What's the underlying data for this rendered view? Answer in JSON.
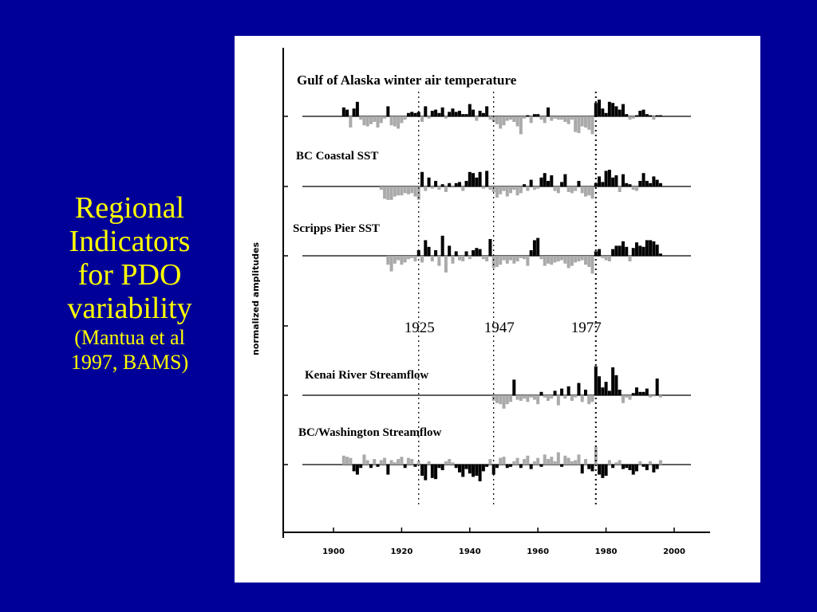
{
  "slide": {
    "title_line_1": "Regional",
    "title_line_2": "Indicators",
    "title_line_3": "for PDO",
    "title_line_4": "variability",
    "citation_line_1": "(Mantua et al",
    "citation_line_2": "1997, BAMS)",
    "background_color": "#000099",
    "title_color": "#ffff00"
  },
  "chart_data": {
    "type": "bar",
    "ylabel": "normalized amplitudes",
    "xlabel": "",
    "xlim": [
      1885,
      2010
    ],
    "x_ticks": [
      1900,
      1920,
      1940,
      1960,
      1980,
      2000
    ],
    "regime_shift_years": [
      {
        "year": 1925,
        "label": "1925"
      },
      {
        "year": 1947,
        "label": "1947"
      },
      {
        "year": 1977,
        "label": "1977"
      }
    ],
    "colors": {
      "positive_phase": "#000000",
      "negative_phase": "#aaaaaa"
    },
    "series": [
      {
        "name": "Gulf of Alaska winter air temperature",
        "x": [
          1903,
          1904,
          1905,
          1906,
          1907,
          1908,
          1909,
          1910,
          1911,
          1912,
          1913,
          1914,
          1915,
          1916,
          1917,
          1918,
          1919,
          1920,
          1921,
          1922,
          1923,
          1924,
          1925,
          1926,
          1927,
          1928,
          1929,
          1930,
          1931,
          1932,
          1933,
          1934,
          1935,
          1936,
          1937,
          1938,
          1939,
          1940,
          1941,
          1942,
          1943,
          1944,
          1945,
          1946,
          1947,
          1948,
          1949,
          1950,
          1951,
          1952,
          1953,
          1954,
          1955,
          1956,
          1957,
          1958,
          1959,
          1960,
          1961,
          1962,
          1963,
          1964,
          1965,
          1966,
          1967,
          1968,
          1969,
          1970,
          1971,
          1972,
          1973,
          1974,
          1975,
          1976,
          1977,
          1978,
          1979,
          1980,
          1981,
          1982,
          1983,
          1984,
          1985,
          1986,
          1987,
          1988,
          1989,
          1990,
          1991,
          1992,
          1993,
          1994,
          1995,
          1996
        ],
        "values": [
          0.8,
          0.6,
          -1.0,
          0.7,
          1.3,
          -0.3,
          -0.8,
          -0.9,
          -0.7,
          -0.5,
          -1.0,
          -0.6,
          -0.2,
          0.9,
          -0.8,
          -0.9,
          -1.1,
          -0.6,
          -0.3,
          0.3,
          0.4,
          0.3,
          0.4,
          -0.5,
          0.9,
          -0.2,
          0.5,
          0.6,
          0.3,
          0.8,
          -0.2,
          0.4,
          0.7,
          0.4,
          0.5,
          0.2,
          0.2,
          1.1,
          0.6,
          -0.4,
          0.5,
          0.3,
          0.9,
          -0.3,
          -0.5,
          -0.7,
          -1.1,
          -0.8,
          -0.4,
          -0.3,
          -0.5,
          -0.9,
          -1.6,
          -0.2,
          0.1,
          -0.6,
          0.2,
          0.2,
          -0.3,
          -0.6,
          0.8,
          -0.4,
          -0.2,
          -0.3,
          -0.3,
          -0.5,
          -0.7,
          -0.3,
          -1.4,
          -1.5,
          -0.9,
          -1.0,
          -1.2,
          -1.6,
          1.2,
          1.5,
          0.7,
          0.3,
          1.3,
          1.2,
          0.9,
          0.6,
          1.1,
          0.2,
          -0.3,
          -0.2,
          0.1,
          0.5,
          0.6,
          0.2,
          0.1,
          -0.3,
          0.1,
          0.1
        ],
        "approximate": true
      },
      {
        "name": "BC Coastal SST",
        "x": [
          1914,
          1915,
          1916,
          1917,
          1918,
          1919,
          1920,
          1921,
          1922,
          1923,
          1924,
          1925,
          1926,
          1927,
          1928,
          1929,
          1930,
          1931,
          1932,
          1933,
          1934,
          1935,
          1936,
          1937,
          1938,
          1939,
          1940,
          1941,
          1942,
          1943,
          1944,
          1945,
          1946,
          1947,
          1948,
          1949,
          1950,
          1951,
          1952,
          1953,
          1954,
          1955,
          1956,
          1957,
          1958,
          1959,
          1960,
          1961,
          1962,
          1963,
          1964,
          1965,
          1966,
          1967,
          1968,
          1969,
          1970,
          1971,
          1972,
          1973,
          1974,
          1975,
          1976,
          1977,
          1978,
          1979,
          1980,
          1981,
          1982,
          1983,
          1984,
          1985,
          1986,
          1987,
          1988,
          1989,
          1990,
          1991,
          1992,
          1993,
          1994,
          1995,
          1996
        ],
        "values": [
          -0.3,
          -1.1,
          -1.2,
          -1.2,
          -0.9,
          -0.8,
          -0.8,
          -0.6,
          -0.7,
          -0.6,
          -0.9,
          -1.2,
          1.3,
          -0.4,
          0.8,
          -0.2,
          0.5,
          -0.3,
          0.2,
          -0.5,
          0.3,
          -0.1,
          0.3,
          0.4,
          -0.4,
          0.5,
          1.3,
          1.2,
          0.8,
          1.3,
          -0.2,
          1.4,
          -0.3,
          -0.5,
          -1.0,
          -0.7,
          -0.4,
          -0.9,
          -0.6,
          -0.3,
          -0.8,
          -0.6,
          0.2,
          -0.4,
          0.6,
          -0.3,
          -0.2,
          0.8,
          1.2,
          0.5,
          1.0,
          -0.4,
          -0.6,
          0.4,
          1.1,
          -0.5,
          -0.6,
          -0.4,
          0.5,
          -0.6,
          -0.9,
          -0.8,
          -1.1,
          0.3,
          0.9,
          0.4,
          1.4,
          1.5,
          0.8,
          1.0,
          -0.5,
          1.1,
          0.3,
          0.2,
          -0.3,
          -0.4,
          0.5,
          1.2,
          0.5,
          0.3,
          0.9,
          0.6,
          0.3
        ],
        "approximate": true
      },
      {
        "name": "Scripps Pier SST",
        "x": [
          1916,
          1917,
          1918,
          1919,
          1920,
          1921,
          1922,
          1923,
          1924,
          1925,
          1926,
          1927,
          1928,
          1929,
          1930,
          1931,
          1932,
          1933,
          1934,
          1935,
          1936,
          1937,
          1938,
          1939,
          1940,
          1941,
          1942,
          1943,
          1944,
          1945,
          1946,
          1947,
          1948,
          1949,
          1950,
          1951,
          1952,
          1953,
          1954,
          1955,
          1956,
          1957,
          1958,
          1959,
          1960,
          1961,
          1962,
          1963,
          1964,
          1965,
          1966,
          1967,
          1968,
          1969,
          1970,
          1971,
          1972,
          1973,
          1974,
          1975,
          1976,
          1977,
          1978,
          1979,
          1980,
          1981,
          1982,
          1983,
          1984,
          1985,
          1986,
          1987,
          1988,
          1989,
          1990,
          1991,
          1992,
          1993,
          1994,
          1995,
          1996
        ],
        "values": [
          -0.8,
          -1.4,
          -0.7,
          -0.4,
          -0.8,
          -0.6,
          -0.3,
          -0.2,
          -0.5,
          0.5,
          -0.6,
          1.4,
          0.8,
          -0.5,
          0.5,
          -0.9,
          1.8,
          -1.5,
          0.9,
          -0.7,
          0.4,
          -0.4,
          -0.5,
          0.4,
          -0.3,
          0.5,
          0.7,
          0.6,
          -0.3,
          -0.5,
          1.5,
          -1.1,
          -1.0,
          -0.8,
          -0.4,
          -0.7,
          -0.4,
          -0.7,
          -0.5,
          -0.2,
          -0.3,
          -0.9,
          0.5,
          1.4,
          1.6,
          -0.3,
          -0.9,
          -0.7,
          -0.8,
          -0.6,
          -0.5,
          -0.4,
          -0.7,
          -1.1,
          -0.9,
          -0.6,
          -0.5,
          -0.4,
          -0.8,
          -1.0,
          -1.6,
          0.4,
          0.6,
          -0.2,
          -0.4,
          -0.5,
          0.6,
          0.9,
          0.9,
          1.3,
          0.8,
          -0.5,
          0.7,
          1.2,
          0.9,
          0.8,
          1.4,
          1.4,
          1.3,
          1.0,
          0.2
        ],
        "approximate": true
      },
      {
        "name": "Kenai River Streamflow",
        "x": [
          1947,
          1948,
          1949,
          1950,
          1951,
          1952,
          1953,
          1954,
          1955,
          1956,
          1957,
          1958,
          1959,
          1960,
          1961,
          1962,
          1963,
          1964,
          1965,
          1966,
          1967,
          1968,
          1969,
          1970,
          1971,
          1972,
          1973,
          1974,
          1975,
          1976,
          1977,
          1978,
          1979,
          1980,
          1981,
          1982,
          1983,
          1984,
          1985,
          1986,
          1987,
          1988,
          1989,
          1990,
          1991,
          1992,
          1993,
          1994,
          1995,
          1996
        ],
        "values": [
          -0.5,
          -0.7,
          -0.8,
          -1.2,
          -0.8,
          -0.6,
          1.4,
          -0.4,
          -0.5,
          -0.3,
          -0.6,
          -0.2,
          -0.4,
          -0.8,
          0.3,
          -0.2,
          -0.5,
          -0.3,
          0.4,
          -0.9,
          0.6,
          -0.3,
          0.8,
          -0.5,
          -0.2,
          1.1,
          -0.6,
          0.5,
          -0.8,
          -0.6,
          2.6,
          1.7,
          0.7,
          1.2,
          0.4,
          2.5,
          1.8,
          0.5,
          -0.7,
          -0.2,
          -0.4,
          0.2,
          0.7,
          0.3,
          0.3,
          0.6,
          -0.2,
          -0.1,
          1.5,
          -0.2
        ],
        "approximate": true
      },
      {
        "name": "BC/Washington Streamflow",
        "x": [
          1903,
          1904,
          1905,
          1906,
          1907,
          1908,
          1909,
          1910,
          1911,
          1912,
          1913,
          1914,
          1915,
          1916,
          1917,
          1918,
          1919,
          1920,
          1921,
          1922,
          1923,
          1924,
          1925,
          1926,
          1927,
          1928,
          1929,
          1930,
          1931,
          1932,
          1933,
          1934,
          1935,
          1936,
          1937,
          1938,
          1939,
          1940,
          1941,
          1942,
          1943,
          1944,
          1945,
          1946,
          1947,
          1948,
          1949,
          1950,
          1951,
          1952,
          1953,
          1954,
          1955,
          1956,
          1957,
          1958,
          1959,
          1960,
          1961,
          1962,
          1963,
          1964,
          1965,
          1966,
          1967,
          1968,
          1969,
          1970,
          1971,
          1972,
          1973,
          1974,
          1975,
          1976,
          1977,
          1978,
          1979,
          1980,
          1981,
          1982,
          1983,
          1984,
          1985,
          1986,
          1987,
          1988,
          1989,
          1990,
          1991,
          1992,
          1993,
          1994,
          1995,
          1996
        ],
        "values": [
          0.8,
          0.7,
          0.6,
          -0.6,
          -0.9,
          -0.3,
          0.9,
          0.4,
          -0.3,
          0.5,
          -0.2,
          0.4,
          0.6,
          -0.9,
          0.4,
          0.2,
          0.5,
          0.7,
          -0.3,
          0.6,
          0.5,
          -0.2,
          0.3,
          -1.0,
          -1.4,
          0.3,
          -1.2,
          -1.3,
          -0.3,
          -0.5,
          0.3,
          0.5,
          0.2,
          -0.3,
          -0.7,
          -1.1,
          -0.4,
          -0.8,
          -1.1,
          -1.0,
          -1.5,
          -0.6,
          -0.2,
          0.5,
          -0.9,
          -0.3,
          0.6,
          0.7,
          -0.3,
          -0.2,
          0.3,
          0.6,
          -0.3,
          0.5,
          0.8,
          -0.4,
          0.3,
          0.6,
          -0.2,
          0.9,
          0.5,
          0.7,
          0.3,
          1.1,
          -0.2,
          0.8,
          0.6,
          0.3,
          0.4,
          0.9,
          -0.8,
          0.5,
          -0.4,
          -0.6,
          1.6,
          -0.9,
          -1.2,
          -1.0,
          0.4,
          -0.3,
          0.2,
          0.4,
          -0.4,
          -0.3,
          -0.5,
          -0.9,
          -0.6,
          0.3,
          -0.2,
          -0.5,
          0.3,
          -0.7,
          -0.4,
          0.4
        ],
        "approximate": true
      }
    ]
  }
}
